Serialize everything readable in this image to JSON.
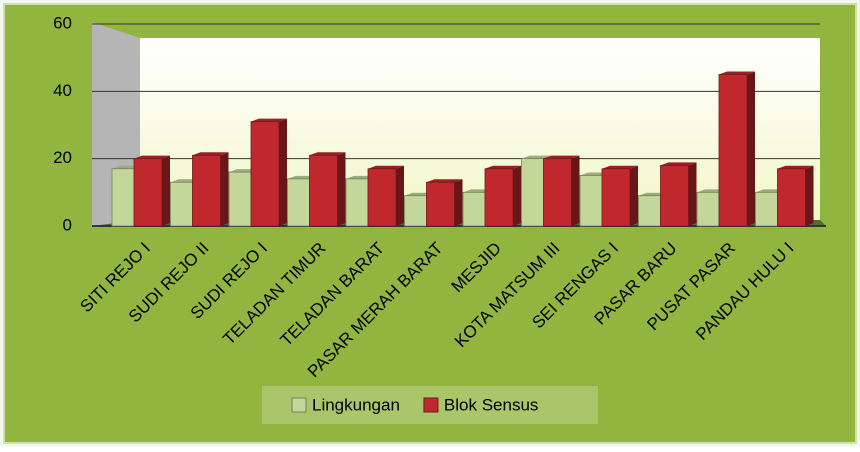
{
  "chart_data": {
    "type": "bar3d",
    "categories": [
      "SITI REJO I",
      "SUDI REJO II",
      "SUDI REJO I",
      "TELADAN TIMUR",
      "TELADAN BARAT",
      "PASAR MERAH BARAT",
      "MESJID",
      "KOTA MATSUM III",
      "SEI RENGAS I",
      "PASAR BARU",
      "PUSAT PASAR",
      "PANDAU HULU I"
    ],
    "series": [
      {
        "name": "Lingkungan",
        "color": "#c4d79b",
        "values": [
          17,
          13,
          16,
          14,
          14,
          9,
          10,
          20,
          15,
          9,
          10,
          10
        ]
      },
      {
        "name": "Blok Sensus",
        "color": "#c0282d",
        "values": [
          20,
          21,
          31,
          21,
          17,
          13,
          17,
          20,
          17,
          18,
          45,
          17
        ]
      }
    ],
    "ylim": [
      0,
      60
    ],
    "yticks": [
      0,
      20,
      40,
      60
    ],
    "grid": true,
    "legend": "bottom"
  }
}
